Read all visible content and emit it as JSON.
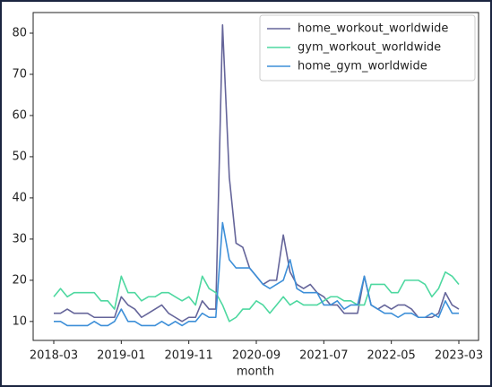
{
  "chart_data": {
    "type": "line",
    "xlabel": "month",
    "x": [
      "2018-03",
      "2018-04",
      "2018-05",
      "2018-06",
      "2018-07",
      "2018-08",
      "2018-09",
      "2018-10",
      "2018-11",
      "2018-12",
      "2019-01",
      "2019-02",
      "2019-03",
      "2019-04",
      "2019-05",
      "2019-06",
      "2019-07",
      "2019-08",
      "2019-09",
      "2019-10",
      "2019-11",
      "2019-12",
      "2020-01",
      "2020-02",
      "2020-03",
      "2020-04",
      "2020-05",
      "2020-06",
      "2020-07",
      "2020-08",
      "2020-09",
      "2020-10",
      "2020-11",
      "2020-12",
      "2021-01",
      "2021-02",
      "2021-03",
      "2021-04",
      "2021-05",
      "2021-06",
      "2021-07",
      "2021-08",
      "2021-09",
      "2021-10",
      "2021-11",
      "2021-12",
      "2022-01",
      "2022-02",
      "2022-03",
      "2022-04",
      "2022-05",
      "2022-06",
      "2022-07",
      "2022-08",
      "2022-09",
      "2022-10",
      "2022-11",
      "2022-12",
      "2023-01",
      "2023-02",
      "2023-03"
    ],
    "xticks": [
      "2018-03",
      "2019-01",
      "2019-11",
      "2020-09",
      "2021-07",
      "2022-05",
      "2023-03"
    ],
    "ylim": [
      5.4,
      85
    ],
    "yticks": [
      10,
      20,
      30,
      40,
      50,
      60,
      70,
      80
    ],
    "legend": "upper right",
    "series": [
      {
        "name": "home_workout_worldwide",
        "color": "#65659a",
        "values": [
          12,
          12,
          13,
          12,
          12,
          12,
          11,
          11,
          11,
          11,
          16,
          14,
          13,
          11,
          12,
          13,
          14,
          12,
          11,
          10,
          11,
          11,
          15,
          13,
          13,
          82,
          45,
          29,
          28,
          23,
          21,
          19,
          20,
          20,
          31,
          22,
          19,
          18,
          19,
          17,
          16,
          14,
          14,
          12,
          12,
          12,
          21,
          14,
          13,
          14,
          13,
          14,
          14,
          13,
          11,
          11,
          11,
          12,
          17,
          14,
          13
        ]
      },
      {
        "name": "gym_workout_worldwide",
        "color": "#4ed8a0",
        "values": [
          16,
          18,
          16,
          17,
          17,
          17,
          17,
          15,
          15,
          13,
          21,
          17,
          17,
          15,
          16,
          16,
          17,
          17,
          16,
          15,
          16,
          14,
          21,
          18,
          17,
          14,
          10,
          11,
          13,
          13,
          15,
          14,
          12,
          14,
          16,
          14,
          15,
          14,
          14,
          14,
          15,
          16,
          16,
          15,
          15,
          14,
          14,
          19,
          19,
          19,
          17,
          17,
          20,
          20,
          20,
          19,
          16,
          18,
          22,
          21,
          19
        ]
      },
      {
        "name": "home_gym_worldwide",
        "color": "#3d8fd8",
        "values": [
          10,
          10,
          9,
          9,
          9,
          9,
          10,
          9,
          9,
          10,
          13,
          10,
          10,
          9,
          9,
          9,
          10,
          9,
          10,
          9,
          10,
          10,
          12,
          11,
          11,
          34,
          25,
          23,
          23,
          23,
          21,
          19,
          18,
          19,
          20,
          25,
          18,
          17,
          17,
          17,
          14,
          14,
          15,
          13,
          14,
          14,
          21,
          14,
          13,
          12,
          12,
          11,
          12,
          12,
          11,
          11,
          12,
          11,
          15,
          12,
          12
        ]
      }
    ]
  }
}
